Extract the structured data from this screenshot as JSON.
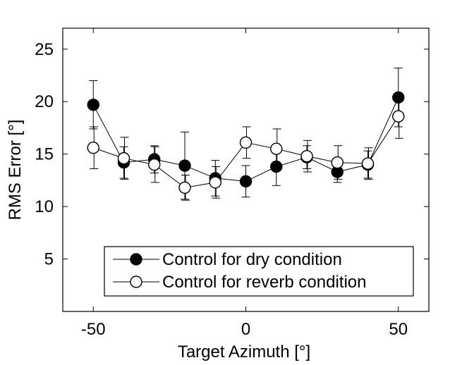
{
  "chart_data": {
    "type": "line",
    "title": "",
    "xlabel": "Target Azimuth [°]",
    "ylabel": "RMS Error [°]",
    "xlim": [
      -60,
      60
    ],
    "ylim": [
      0,
      27
    ],
    "xticks": [
      -50,
      0,
      50
    ],
    "yticks": [
      5,
      10,
      15,
      20,
      25
    ],
    "grid": false,
    "legend_position": "bottom-right",
    "series": [
      {
        "name": "Control for dry condition",
        "marker": "filled-circle",
        "color": "#000000",
        "x": [
          -50,
          -40,
          -30,
          -20,
          -10,
          0,
          10,
          20,
          30,
          40,
          50
        ],
        "y": [
          19.7,
          14.2,
          14.5,
          13.9,
          12.7,
          12.4,
          13.8,
          14.7,
          13.3,
          14.0,
          20.4
        ],
        "err": [
          2.3,
          1.5,
          1.3,
          3.2,
          1.7,
          1.5,
          1.8,
          1.1,
          1.0,
          1.3,
          2.8
        ]
      },
      {
        "name": "Control for reverb condition",
        "marker": "open-circle",
        "color": "#000000",
        "x": [
          -50,
          -40,
          -30,
          -20,
          -10,
          0,
          10,
          20,
          30,
          40,
          50
        ],
        "y": [
          15.6,
          14.6,
          14.0,
          11.8,
          12.3,
          16.1,
          15.5,
          14.8,
          14.2,
          14.1,
          18.6
        ],
        "err": [
          2.0,
          2.0,
          1.7,
          1.2,
          1.5,
          1.5,
          1.9,
          1.5,
          1.6,
          1.5,
          2.1
        ]
      }
    ]
  }
}
